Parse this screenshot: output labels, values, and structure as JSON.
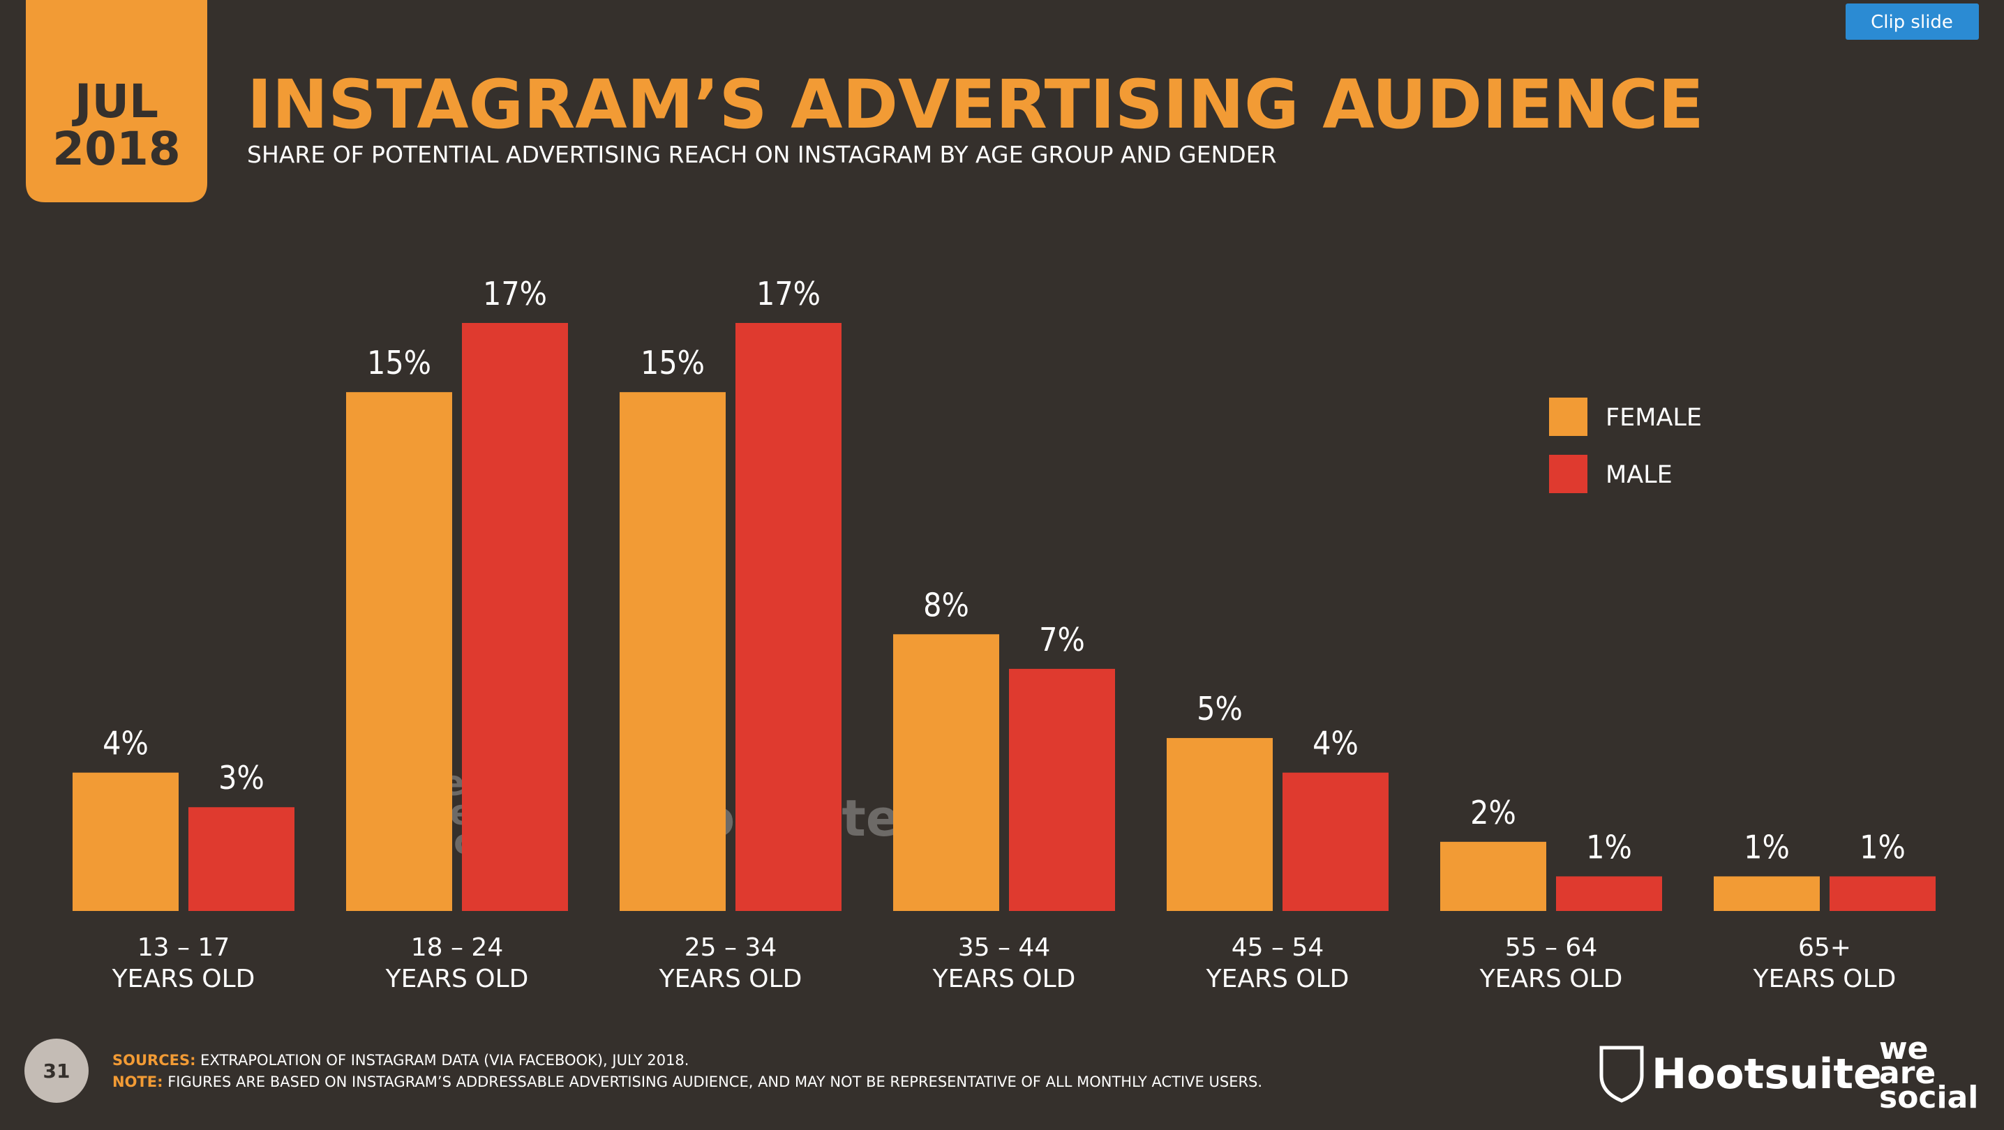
{
  "date_badge": {
    "month": "JUL",
    "year": "2018"
  },
  "clip_button": "Clip slide",
  "chart_data": {
    "type": "bar",
    "title": "INSTAGRAM’S ADVERTISING AUDIENCE",
    "subtitle": "SHARE OF POTENTIAL ADVERTISING REACH ON INSTAGRAM BY AGE GROUP AND GENDER",
    "categories": [
      "13 – 17",
      "18 – 24",
      "25 – 34",
      "35 – 44",
      "45 – 54",
      "55 – 64",
      "65+"
    ],
    "category_note": "YEARS OLD",
    "series": [
      {
        "name": "FEMALE",
        "color": "#f29b35",
        "values": [
          4,
          15,
          15,
          8,
          5,
          2,
          1
        ],
        "value_labels": [
          "4%",
          "15%",
          "15%",
          "8%",
          "5%",
          "2%",
          "1%"
        ]
      },
      {
        "name": "MALE",
        "color": "#df3a2f",
        "values": [
          3,
          17,
          17,
          7,
          4,
          1,
          1
        ],
        "value_labels": [
          "3%",
          "17%",
          "17%",
          "7%",
          "4%",
          "1%",
          "1%"
        ]
      }
    ],
    "legend": "right"
  },
  "watermarks": {
    "agency": [
      "we",
      "are",
      "social"
    ],
    "brand": "Hootsuite"
  },
  "footer": {
    "page_number": "31",
    "sources_label": "SOURCES:",
    "sources": "EXTRAPOLATION OF INSTAGRAM DATA (VIA FACEBOOK), JULY 2018.",
    "note_label": "NOTE:",
    "note": "FIGURES ARE BASED ON INSTAGRAM’S ADDRESSABLE ADVERTISING AUDIENCE, AND MAY NOT BE REPRESENTATIVE OF ALL MONTHLY ACTIVE USERS.",
    "logo_brand": "Hootsuite",
    "logo_agency": [
      "we",
      "are",
      "social"
    ]
  }
}
